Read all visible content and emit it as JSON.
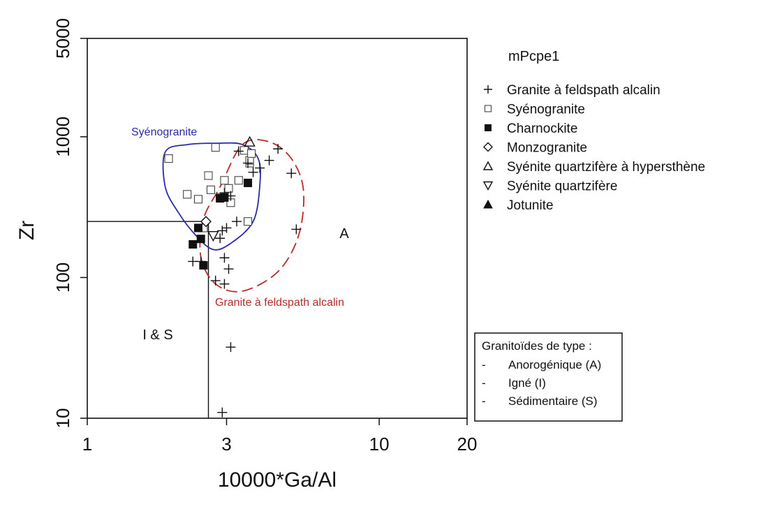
{
  "chart_data": {
    "type": "scatter",
    "xlabel": "10000*Ga/Al",
    "ylabel": "Zr",
    "x_scale": "log",
    "y_scale": "log",
    "xlim": [
      1,
      20
    ],
    "ylim": [
      10,
      5000
    ],
    "x_ticks": [
      1,
      3,
      10,
      20
    ],
    "y_ticks": [
      10,
      100,
      1000,
      5000
    ],
    "grid": false,
    "legend_title": "mPcpe1",
    "legend_position": "right",
    "boundary_lines": {
      "x_boundary": 2.6,
      "y_boundary": 250
    },
    "region_labels": [
      "A",
      "I & S"
    ],
    "fields": [
      {
        "name": "Syénogranite",
        "color": "#2a2aa8",
        "style": "solid",
        "outline": [
          [
            1.85,
            780
          ],
          [
            2.2,
            880
          ],
          [
            2.8,
            900
          ],
          [
            3.4,
            880
          ],
          [
            3.85,
            700
          ],
          [
            3.9,
            450
          ],
          [
            3.7,
            250
          ],
          [
            3.1,
            175
          ],
          [
            2.7,
            158
          ],
          [
            2.35,
            200
          ],
          [
            2.05,
            290
          ],
          [
            1.85,
            440
          ]
        ]
      },
      {
        "name": "Granite à feldspath alcalin",
        "color": "#b52a2a",
        "style": "dashed",
        "outline": [
          [
            3.4,
            880
          ],
          [
            4.2,
            920
          ],
          [
            5.0,
            700
          ],
          [
            5.5,
            420
          ],
          [
            5.3,
            200
          ],
          [
            4.5,
            110
          ],
          [
            3.4,
            80
          ],
          [
            2.75,
            90
          ],
          [
            2.45,
            140
          ],
          [
            2.5,
            260
          ],
          [
            2.85,
            440
          ]
        ]
      }
    ],
    "series": [
      {
        "name": "Granite à feldspath alcalin",
        "marker": "plus",
        "points": [
          [
            2.9,
            11
          ],
          [
            3.1,
            32
          ],
          [
            2.3,
            130
          ],
          [
            2.45,
            130
          ],
          [
            2.75,
            95
          ],
          [
            2.95,
            90
          ],
          [
            3.05,
            115
          ],
          [
            2.95,
            138
          ],
          [
            2.85,
            190
          ],
          [
            2.9,
            215
          ],
          [
            3.0,
            225
          ],
          [
            3.25,
            250
          ],
          [
            3.1,
            380
          ],
          [
            2.95,
            400
          ],
          [
            3.55,
            650
          ],
          [
            3.7,
            560
          ],
          [
            3.9,
            600
          ],
          [
            4.2,
            680
          ],
          [
            4.5,
            820
          ],
          [
            5.0,
            550
          ],
          [
            5.2,
            220
          ],
          [
            3.3,
            790
          ]
        ]
      },
      {
        "name": "Syénogranite",
        "marker": "square-open",
        "points": [
          [
            1.9,
            700
          ],
          [
            2.2,
            390
          ],
          [
            2.4,
            360
          ],
          [
            2.65,
            420
          ],
          [
            2.6,
            530
          ],
          [
            2.85,
            370
          ],
          [
            2.95,
            490
          ],
          [
            3.05,
            430
          ],
          [
            3.1,
            340
          ],
          [
            3.3,
            490
          ],
          [
            3.45,
            800
          ],
          [
            3.6,
            650
          ],
          [
            3.6,
            680
          ],
          [
            3.65,
            760
          ],
          [
            3.55,
            250
          ],
          [
            2.75,
            840
          ],
          [
            2.5,
            225
          ]
        ]
      },
      {
        "name": "Charnockite",
        "marker": "square-filled",
        "points": [
          [
            2.4,
            225
          ],
          [
            2.45,
            188
          ],
          [
            2.3,
            172
          ],
          [
            2.5,
            122
          ],
          [
            2.85,
            365
          ],
          [
            2.95,
            370
          ],
          [
            3.55,
            470
          ]
        ]
      },
      {
        "name": "Monzogranite",
        "marker": "diamond-open",
        "points": [
          [
            2.55,
            250
          ]
        ]
      },
      {
        "name": "Syénite quartzifère à hypersthène",
        "marker": "triangle-up-open",
        "points": [
          [
            3.6,
            920
          ]
        ]
      },
      {
        "name": "Syénite quartzifère",
        "marker": "triangle-down-open",
        "points": [
          [
            2.7,
            198
          ]
        ]
      },
      {
        "name": "Jotunite",
        "marker": "triangle-up-filled",
        "points": []
      }
    ]
  },
  "classification_box": {
    "title": "Granitoïdes de type :",
    "items": [
      {
        "dash": "-",
        "label": "Anorogénique (A)"
      },
      {
        "dash": "-",
        "label": "Igné (I)"
      },
      {
        "dash": "-",
        "label": "Sédimentaire (S)"
      }
    ]
  }
}
